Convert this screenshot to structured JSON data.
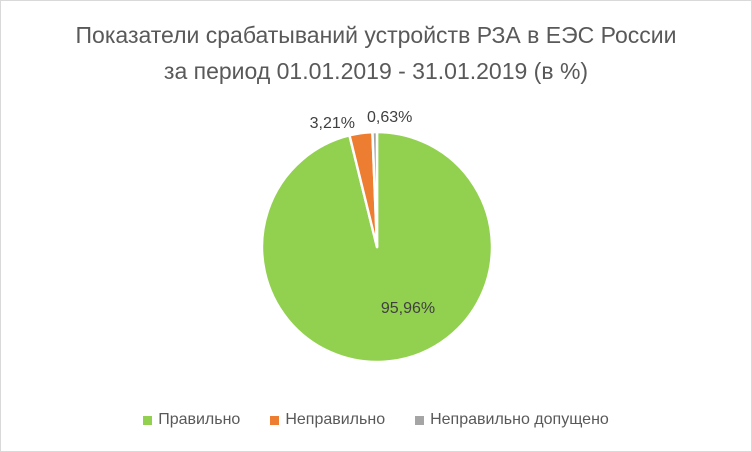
{
  "chart_data": {
    "type": "pie",
    "title": [
      "Показатели срабатываний устройств РЗА в ЕЭС России",
      "за период 01.01.2019 - 31.01.2019 (в %)"
    ],
    "categories": [
      "Правильно",
      "Неправильно",
      "Неправильно допущено"
    ],
    "values": [
      95.96,
      3.21,
      0.63
    ],
    "data_labels": [
      "95,96%",
      "3,21%",
      "0,63%"
    ],
    "colors": [
      "#92d050",
      "#ed7d31",
      "#a5a5a5"
    ],
    "legend_position": "bottom",
    "slice_border_color": "#ffffff"
  }
}
